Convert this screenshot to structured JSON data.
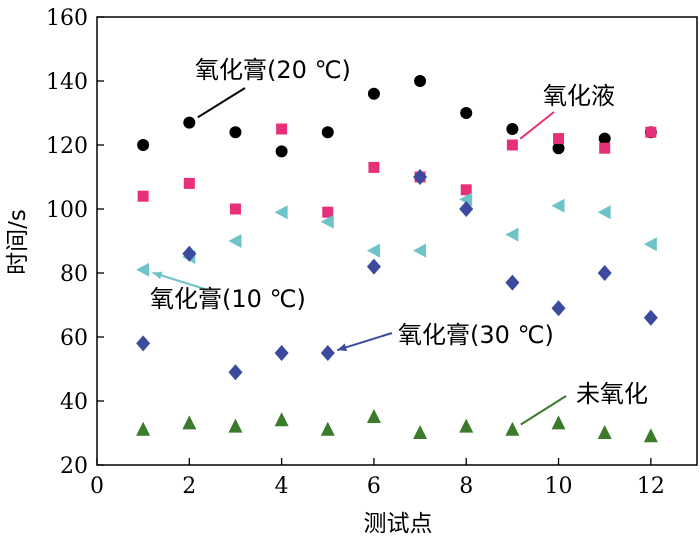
{
  "chart_data": {
    "type": "scatter",
    "xlabel": "测试点",
    "ylabel": "时间/s",
    "xlim": [
      0,
      13
    ],
    "ylim": [
      20,
      160
    ],
    "xticks": [
      0,
      2,
      4,
      6,
      8,
      10,
      12
    ],
    "yticks": [
      20,
      40,
      60,
      80,
      100,
      120,
      140,
      160
    ],
    "grid": false,
    "x": [
      1,
      2,
      3,
      4,
      5,
      6,
      7,
      8,
      9,
      10,
      11,
      12
    ],
    "series": [
      {
        "name": "氧化膏(20 ℃)",
        "marker": "circle",
        "color": "#000000",
        "values": [
          120,
          127,
          124,
          118,
          124,
          136,
          140,
          130,
          125,
          119,
          122,
          124
        ]
      },
      {
        "name": "氧化液",
        "marker": "square",
        "color": "#e8307a",
        "values": [
          104,
          108,
          100,
          125,
          99,
          113,
          110,
          106,
          120,
          122,
          119,
          124
        ]
      },
      {
        "name": "氧化膏(10 ℃)",
        "marker": "triangle-left",
        "color": "#6ec3c8",
        "values": [
          81,
          85,
          90,
          99,
          96,
          87,
          87,
          103,
          92,
          101,
          99,
          89
        ]
      },
      {
        "name": "氧化膏(30 ℃)",
        "marker": "diamond",
        "color": "#3b4a9c",
        "values": [
          58,
          86,
          49,
          55,
          55,
          82,
          110,
          100,
          77,
          69,
          80,
          66
        ]
      },
      {
        "name": "未氧化",
        "marker": "triangle-up",
        "color": "#3c7a2c",
        "values": [
          31,
          33,
          32,
          34,
          31,
          35,
          30,
          32,
          31,
          33,
          30,
          29
        ]
      }
    ],
    "annotations": [
      {
        "text": "氧化膏(20 ℃)",
        "series": 0,
        "point_x": 2
      },
      {
        "text": "氧化液",
        "series": 1,
        "point_x": 9
      },
      {
        "text": "氧化膏(10 ℃)",
        "series": 2,
        "point_x": 1
      },
      {
        "text": "氧化膏(30 ℃)",
        "series": 3,
        "point_x": 5
      },
      {
        "text": "未氧化",
        "series": 4,
        "point_x": 9
      }
    ]
  }
}
